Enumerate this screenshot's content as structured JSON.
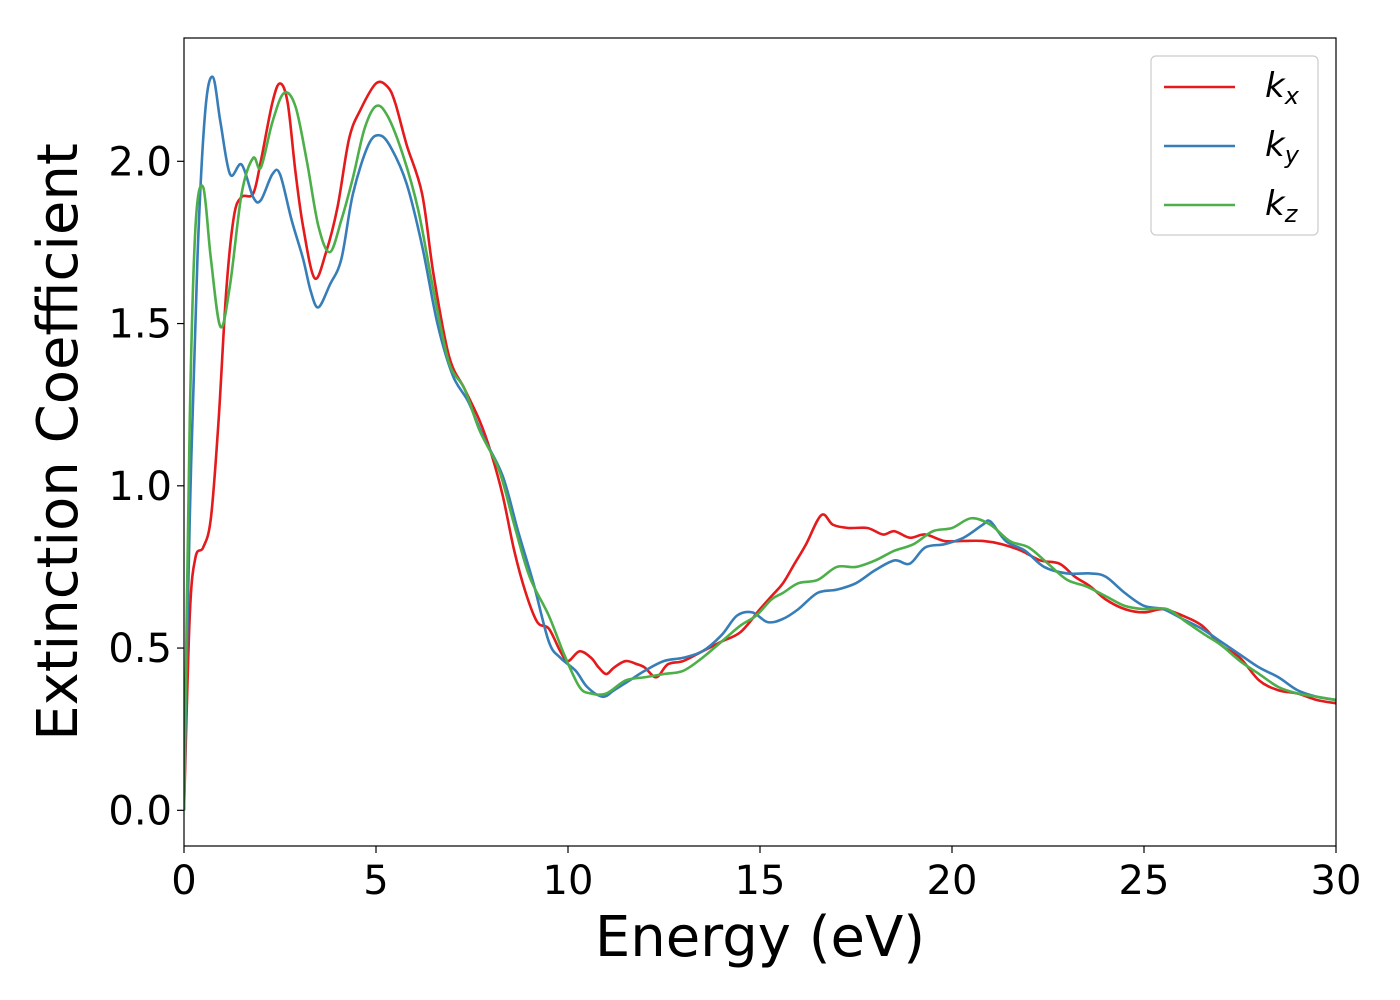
{
  "chart_data": {
    "type": "line",
    "xlabel": "Energy (eV)",
    "ylabel": "Extinction Coefficient",
    "xlim": [
      0,
      30
    ],
    "ylim": [
      -0.11,
      2.38
    ],
    "xticks": [
      0,
      5,
      10,
      15,
      20,
      25,
      30
    ],
    "yticks": [
      0.0,
      0.5,
      1.0,
      1.5,
      2.0
    ],
    "xtick_labels": [
      "0",
      "5",
      "10",
      "15",
      "20",
      "25",
      "30"
    ],
    "ytick_labels": [
      "0.0",
      "0.5",
      "1.0",
      "1.5",
      "2.0"
    ],
    "grid": false,
    "legend_position": "top-right",
    "series": [
      {
        "name": "kx",
        "legend_base": "k",
        "legend_sub": "x",
        "color": "#e41a1c",
        "points": [
          [
            0,
            0
          ],
          [
            0.15,
            0.6
          ],
          [
            0.3,
            0.78
          ],
          [
            0.5,
            0.81
          ],
          [
            0.7,
            0.9
          ],
          [
            0.9,
            1.2
          ],
          [
            1.1,
            1.6
          ],
          [
            1.3,
            1.83
          ],
          [
            1.5,
            1.89
          ],
          [
            1.8,
            1.9
          ],
          [
            2.0,
            2.0
          ],
          [
            2.3,
            2.18
          ],
          [
            2.5,
            2.24
          ],
          [
            2.7,
            2.18
          ],
          [
            2.9,
            1.97
          ],
          [
            3.1,
            1.8
          ],
          [
            3.4,
            1.64
          ],
          [
            3.7,
            1.72
          ],
          [
            4.0,
            1.86
          ],
          [
            4.3,
            2.07
          ],
          [
            4.6,
            2.16
          ],
          [
            5.0,
            2.24
          ],
          [
            5.3,
            2.23
          ],
          [
            5.5,
            2.18
          ],
          [
            5.8,
            2.05
          ],
          [
            6.2,
            1.9
          ],
          [
            6.5,
            1.65
          ],
          [
            6.9,
            1.4
          ],
          [
            7.3,
            1.3
          ],
          [
            7.7,
            1.2
          ],
          [
            8.0,
            1.1
          ],
          [
            8.3,
            0.97
          ],
          [
            8.6,
            0.8
          ],
          [
            8.9,
            0.67
          ],
          [
            9.2,
            0.58
          ],
          [
            9.5,
            0.56
          ],
          [
            9.8,
            0.49
          ],
          [
            10.0,
            0.46
          ],
          [
            10.3,
            0.49
          ],
          [
            10.6,
            0.47
          ],
          [
            10.8,
            0.44
          ],
          [
            11.0,
            0.42
          ],
          [
            11.2,
            0.44
          ],
          [
            11.5,
            0.46
          ],
          [
            11.8,
            0.45
          ],
          [
            12.0,
            0.44
          ],
          [
            12.3,
            0.41
          ],
          [
            12.6,
            0.45
          ],
          [
            13.0,
            0.46
          ],
          [
            13.5,
            0.49
          ],
          [
            14.0,
            0.52
          ],
          [
            14.5,
            0.55
          ],
          [
            15.0,
            0.62
          ],
          [
            15.3,
            0.66
          ],
          [
            15.6,
            0.7
          ],
          [
            15.9,
            0.76
          ],
          [
            16.2,
            0.82
          ],
          [
            16.6,
            0.91
          ],
          [
            16.9,
            0.88
          ],
          [
            17.3,
            0.87
          ],
          [
            17.8,
            0.87
          ],
          [
            18.2,
            0.85
          ],
          [
            18.5,
            0.86
          ],
          [
            18.9,
            0.84
          ],
          [
            19.3,
            0.85
          ],
          [
            19.8,
            0.83
          ],
          [
            20.3,
            0.83
          ],
          [
            20.8,
            0.83
          ],
          [
            21.3,
            0.82
          ],
          [
            21.8,
            0.8
          ],
          [
            22.3,
            0.77
          ],
          [
            22.8,
            0.76
          ],
          [
            23.2,
            0.72
          ],
          [
            23.6,
            0.69
          ],
          [
            24.0,
            0.65
          ],
          [
            24.5,
            0.62
          ],
          [
            25.0,
            0.61
          ],
          [
            25.5,
            0.62
          ],
          [
            26.0,
            0.6
          ],
          [
            26.5,
            0.57
          ],
          [
            27.0,
            0.51
          ],
          [
            27.5,
            0.47
          ],
          [
            28.0,
            0.4
          ],
          [
            28.5,
            0.37
          ],
          [
            29.0,
            0.36
          ],
          [
            29.5,
            0.34
          ],
          [
            30.0,
            0.33
          ]
        ]
      },
      {
        "name": "ky",
        "legend_base": "k",
        "legend_sub": "y",
        "color": "#377eb8",
        "points": [
          [
            0,
            0
          ],
          [
            0.15,
            0.9
          ],
          [
            0.35,
            1.7
          ],
          [
            0.55,
            2.15
          ],
          [
            0.75,
            2.26
          ],
          [
            0.95,
            2.12
          ],
          [
            1.2,
            1.96
          ],
          [
            1.5,
            1.99
          ],
          [
            1.8,
            1.89
          ],
          [
            2.0,
            1.88
          ],
          [
            2.3,
            1.96
          ],
          [
            2.5,
            1.96
          ],
          [
            2.8,
            1.82
          ],
          [
            3.1,
            1.7
          ],
          [
            3.3,
            1.6
          ],
          [
            3.5,
            1.55
          ],
          [
            3.8,
            1.62
          ],
          [
            4.1,
            1.7
          ],
          [
            4.4,
            1.9
          ],
          [
            4.8,
            2.05
          ],
          [
            5.1,
            2.08
          ],
          [
            5.4,
            2.04
          ],
          [
            5.8,
            1.93
          ],
          [
            6.2,
            1.74
          ],
          [
            6.6,
            1.5
          ],
          [
            7.0,
            1.34
          ],
          [
            7.4,
            1.26
          ],
          [
            7.8,
            1.15
          ],
          [
            8.3,
            1.03
          ],
          [
            8.7,
            0.86
          ],
          [
            9.1,
            0.7
          ],
          [
            9.5,
            0.52
          ],
          [
            9.8,
            0.47
          ],
          [
            10.2,
            0.43
          ],
          [
            10.5,
            0.38
          ],
          [
            10.9,
            0.35
          ],
          [
            11.2,
            0.37
          ],
          [
            11.6,
            0.4
          ],
          [
            12.0,
            0.43
          ],
          [
            12.5,
            0.46
          ],
          [
            13.0,
            0.47
          ],
          [
            13.5,
            0.49
          ],
          [
            14.0,
            0.54
          ],
          [
            14.4,
            0.6
          ],
          [
            14.8,
            0.61
          ],
          [
            15.2,
            0.58
          ],
          [
            15.6,
            0.59
          ],
          [
            16.0,
            0.62
          ],
          [
            16.5,
            0.67
          ],
          [
            17.0,
            0.68
          ],
          [
            17.5,
            0.7
          ],
          [
            18.0,
            0.74
          ],
          [
            18.5,
            0.77
          ],
          [
            18.9,
            0.76
          ],
          [
            19.3,
            0.81
          ],
          [
            19.8,
            0.82
          ],
          [
            20.3,
            0.84
          ],
          [
            20.8,
            0.88
          ],
          [
            21.0,
            0.89
          ],
          [
            21.4,
            0.83
          ],
          [
            21.9,
            0.8
          ],
          [
            22.4,
            0.75
          ],
          [
            23.0,
            0.73
          ],
          [
            23.6,
            0.73
          ],
          [
            24.0,
            0.72
          ],
          [
            24.5,
            0.67
          ],
          [
            25.0,
            0.63
          ],
          [
            25.5,
            0.62
          ],
          [
            26.0,
            0.59
          ],
          [
            26.5,
            0.56
          ],
          [
            27.0,
            0.52
          ],
          [
            27.5,
            0.48
          ],
          [
            28.0,
            0.44
          ],
          [
            28.5,
            0.41
          ],
          [
            29.0,
            0.37
          ],
          [
            29.5,
            0.35
          ],
          [
            30.0,
            0.34
          ]
        ]
      },
      {
        "name": "kz",
        "legend_base": "k",
        "legend_sub": "z",
        "color": "#4daf4a",
        "points": [
          [
            0,
            0
          ],
          [
            0.15,
            1.2
          ],
          [
            0.3,
            1.8
          ],
          [
            0.5,
            1.92
          ],
          [
            0.7,
            1.7
          ],
          [
            0.95,
            1.49
          ],
          [
            1.2,
            1.62
          ],
          [
            1.5,
            1.9
          ],
          [
            1.8,
            2.01
          ],
          [
            2.0,
            1.98
          ],
          [
            2.3,
            2.12
          ],
          [
            2.6,
            2.21
          ],
          [
            2.9,
            2.17
          ],
          [
            3.2,
            2.0
          ],
          [
            3.5,
            1.8
          ],
          [
            3.8,
            1.72
          ],
          [
            4.1,
            1.82
          ],
          [
            4.4,
            1.95
          ],
          [
            4.7,
            2.1
          ],
          [
            5.0,
            2.17
          ],
          [
            5.3,
            2.14
          ],
          [
            5.7,
            2.02
          ],
          [
            6.1,
            1.85
          ],
          [
            6.5,
            1.6
          ],
          [
            6.9,
            1.38
          ],
          [
            7.3,
            1.3
          ],
          [
            7.7,
            1.17
          ],
          [
            8.2,
            1.05
          ],
          [
            8.6,
            0.88
          ],
          [
            9.0,
            0.72
          ],
          [
            9.5,
            0.6
          ],
          [
            9.9,
            0.48
          ],
          [
            10.3,
            0.38
          ],
          [
            10.6,
            0.36
          ],
          [
            11.0,
            0.36
          ],
          [
            11.5,
            0.4
          ],
          [
            12.0,
            0.41
          ],
          [
            12.5,
            0.42
          ],
          [
            13.0,
            0.43
          ],
          [
            13.5,
            0.47
          ],
          [
            14.0,
            0.52
          ],
          [
            14.5,
            0.57
          ],
          [
            14.9,
            0.6
          ],
          [
            15.3,
            0.65
          ],
          [
            15.6,
            0.67
          ],
          [
            16.0,
            0.7
          ],
          [
            16.5,
            0.71
          ],
          [
            17.0,
            0.75
          ],
          [
            17.5,
            0.75
          ],
          [
            18.0,
            0.77
          ],
          [
            18.5,
            0.8
          ],
          [
            19.0,
            0.82
          ],
          [
            19.5,
            0.86
          ],
          [
            20.0,
            0.87
          ],
          [
            20.5,
            0.9
          ],
          [
            21.0,
            0.88
          ],
          [
            21.5,
            0.83
          ],
          [
            22.0,
            0.81
          ],
          [
            22.5,
            0.76
          ],
          [
            23.0,
            0.71
          ],
          [
            23.5,
            0.69
          ],
          [
            24.0,
            0.66
          ],
          [
            24.5,
            0.63
          ],
          [
            25.0,
            0.62
          ],
          [
            25.6,
            0.62
          ],
          [
            26.1,
            0.58
          ],
          [
            26.6,
            0.54
          ],
          [
            27.0,
            0.51
          ],
          [
            27.5,
            0.46
          ],
          [
            28.0,
            0.42
          ],
          [
            28.5,
            0.38
          ],
          [
            29.0,
            0.36
          ],
          [
            29.5,
            0.35
          ],
          [
            30.0,
            0.34
          ]
        ]
      }
    ]
  }
}
